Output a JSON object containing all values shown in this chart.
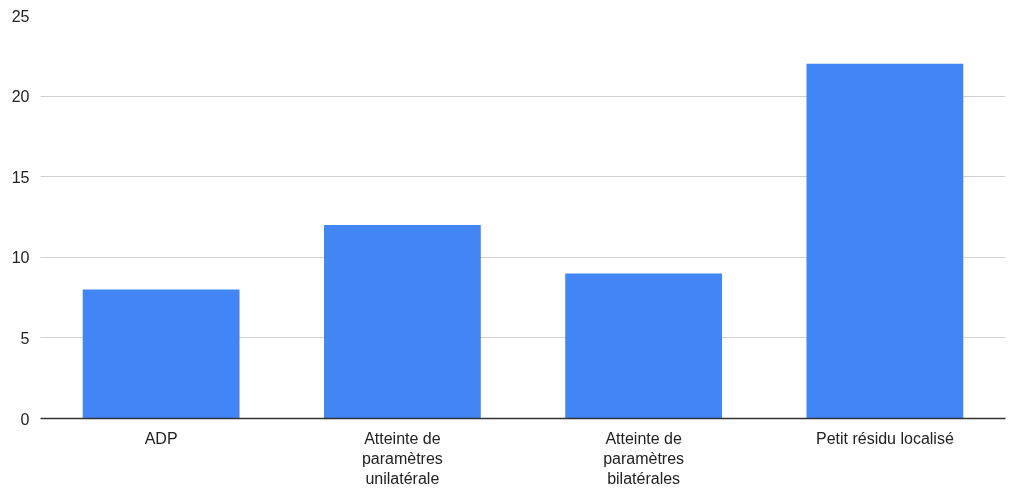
{
  "chart_data": {
    "type": "bar",
    "categories": [
      "ADP",
      "Atteinte de paramètres unilatérale",
      "Atteinte de paramètres bilatérales",
      "Petit résidu localisé"
    ],
    "values": [
      8,
      12,
      9,
      22
    ],
    "color": "#4285f4",
    "ylim": [
      0,
      25
    ],
    "yticks": [
      0,
      5,
      10,
      15,
      20,
      25
    ],
    "grid": "y"
  }
}
